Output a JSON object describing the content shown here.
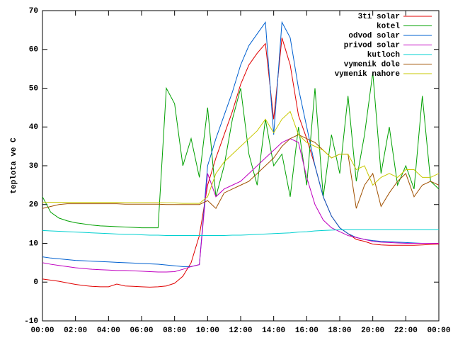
{
  "chart_data": {
    "type": "line",
    "ylabel": "teplota ve C",
    "xlim": [
      0,
      24
    ],
    "ylim": [
      -10,
      70
    ],
    "xticks": [
      {
        "value": 0,
        "label": "00:00"
      },
      {
        "value": 2,
        "label": "02:00"
      },
      {
        "value": 4,
        "label": "04:00"
      },
      {
        "value": 6,
        "label": "06:00"
      },
      {
        "value": 8,
        "label": "08:00"
      },
      {
        "value": 10,
        "label": "10:00"
      },
      {
        "value": 12,
        "label": "12:00"
      },
      {
        "value": 14,
        "label": "14:00"
      },
      {
        "value": 16,
        "label": "16:00"
      },
      {
        "value": 18,
        "label": "18:00"
      },
      {
        "value": 20,
        "label": "20:00"
      },
      {
        "value": 22,
        "label": "22:00"
      },
      {
        "value": 24,
        "label": "00:00"
      }
    ],
    "yticks": [
      -10,
      0,
      10,
      20,
      30,
      40,
      50,
      60,
      70
    ],
    "legend": "top-right",
    "x": [
      0,
      0.5,
      1,
      1.5,
      2,
      2.5,
      3,
      3.5,
      4,
      4.5,
      5,
      5.5,
      6,
      6.5,
      7,
      7.5,
      8,
      8.5,
      9,
      9.5,
      10,
      10.5,
      11,
      11.5,
      12,
      12.5,
      13,
      13.5,
      14,
      14.5,
      15,
      15.5,
      16,
      16.5,
      17,
      17.5,
      18,
      18.5,
      19,
      19.5,
      20,
      20.5,
      21,
      21.5,
      22,
      22.5,
      23,
      23.5,
      24
    ],
    "series": [
      {
        "name": "3ti solar",
        "color": "#e00000",
        "values": [
          0.8,
          0.5,
          0.2,
          -0.2,
          -0.6,
          -0.9,
          -1.1,
          -1.2,
          -1.2,
          -0.5,
          -1,
          -1.1,
          -1.2,
          -1.3,
          -1.2,
          -1,
          -0.3,
          1.5,
          5,
          12,
          25,
          32,
          38,
          44,
          51,
          56,
          59,
          61.5,
          42,
          63,
          56,
          43,
          37,
          30,
          22,
          17,
          14,
          12.5,
          11,
          10.5,
          9.8,
          9.6,
          9.5,
          9.5,
          9.5,
          9.5,
          9.6,
          9.7,
          9.8
        ]
      },
      {
        "name": "kotel",
        "color": "#00a000",
        "values": [
          22,
          18,
          16.5,
          15.8,
          15.3,
          15,
          14.7,
          14.5,
          14.4,
          14.3,
          14.2,
          14.1,
          14,
          14,
          14,
          50,
          46,
          30,
          37,
          27,
          45,
          22,
          30,
          42,
          50,
          33,
          25,
          42,
          30,
          33,
          22,
          40,
          25,
          50,
          22,
          38,
          28,
          48,
          26,
          38,
          54,
          28,
          40,
          25,
          30,
          24,
          48,
          26,
          24
        ]
      },
      {
        "name": "odvod solar",
        "color": "#0060d0",
        "values": [
          6.5,
          6.2,
          6,
          5.8,
          5.6,
          5.5,
          5.4,
          5.3,
          5.2,
          5.1,
          5,
          4.9,
          4.8,
          4.7,
          4.6,
          4.4,
          4.2,
          4,
          4,
          4.5,
          30,
          37,
          43,
          49,
          56,
          61,
          64,
          67,
          38,
          67,
          63,
          50,
          40,
          30,
          22,
          17,
          14,
          12.5,
          11.5,
          11,
          10.7,
          10.5,
          10.4,
          10.3,
          10.2,
          10.1,
          10,
          10,
          10
        ]
      },
      {
        "name": "privod solar",
        "color": "#c000c0",
        "values": [
          5,
          4.6,
          4.3,
          4,
          3.7,
          3.5,
          3.3,
          3.2,
          3.1,
          3,
          3,
          2.9,
          2.8,
          2.7,
          2.6,
          2.6,
          2.7,
          3.3,
          4,
          4.5,
          28,
          22,
          24,
          25,
          26,
          28,
          30,
          32,
          34,
          36,
          37,
          36,
          27,
          20,
          16,
          14,
          13,
          12,
          11.5,
          11,
          10.5,
          10.3,
          10.2,
          10.1,
          10,
          10,
          10,
          10,
          10
        ]
      },
      {
        "name": "kutloch",
        "color": "#00d0d0",
        "values": [
          13.3,
          13.2,
          13.1,
          13,
          12.9,
          12.8,
          12.7,
          12.6,
          12.5,
          12.4,
          12.3,
          12.3,
          12.2,
          12.1,
          12.1,
          12,
          12,
          12,
          12,
          12,
          12,
          12,
          12,
          12.1,
          12.1,
          12.2,
          12.3,
          12.4,
          12.5,
          12.6,
          12.7,
          12.9,
          13,
          13.2,
          13.3,
          13.4,
          13.5,
          13.5,
          13.5,
          13.5,
          13.5,
          13.5,
          13.5,
          13.5,
          13.5,
          13.5,
          13.5,
          13.5,
          13.5
        ]
      },
      {
        "name": "vymenik dole",
        "color": "#a05000",
        "values": [
          19,
          19.5,
          20,
          20.2,
          20.2,
          20.2,
          20.2,
          20.2,
          20.2,
          20.2,
          20.1,
          20.1,
          20.1,
          20.1,
          20.1,
          20,
          20,
          20,
          20,
          20,
          21,
          19,
          23,
          24,
          25,
          26,
          28,
          30,
          32,
          35,
          37,
          38,
          37,
          36,
          34,
          32,
          33,
          33,
          19,
          25,
          28,
          19.5,
          23,
          26,
          28,
          22,
          25,
          26,
          25
        ]
      },
      {
        "name": "vymenik nahore",
        "color": "#c8c800",
        "values": [
          20.5,
          20.6,
          20.6,
          20.6,
          20.6,
          20.6,
          20.6,
          20.6,
          20.6,
          20.6,
          20.5,
          20.5,
          20.5,
          20.5,
          20.5,
          20.4,
          20.4,
          20.3,
          20.3,
          20.3,
          22,
          28,
          31,
          33,
          35,
          37,
          39,
          42,
          38.5,
          42,
          44,
          38,
          36,
          35,
          34,
          32,
          33,
          33,
          29,
          30,
          25,
          27,
          28,
          27,
          29,
          29,
          27,
          27,
          28
        ]
      }
    ]
  }
}
